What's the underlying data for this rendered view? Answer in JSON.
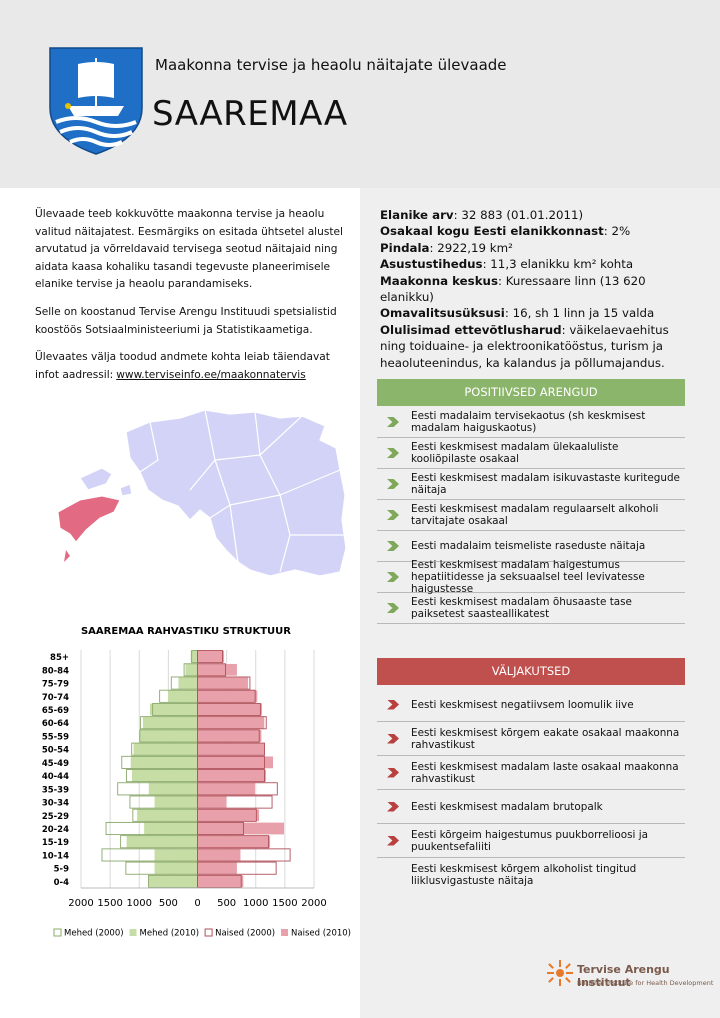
{
  "header": {
    "subtitle": "Maakonna tervise ja heaolu näitajate ülevaade",
    "title": "SAAREMAA"
  },
  "intro": {
    "paragraphs": [
      "Ülevaade teeb kokkuvõtte maakonna tervise ja heaolu valitud näitajatest. Eesmärgiks on esitada ühtsetel alustel arvutatud ja võrreldavaid tervisega seotud näitajaid ning aidata kaasa kohaliku tasandi tegevuste planeerimisele elanike tervise ja heaolu parandamiseks.",
      "Selle on koostanud Tervise Arengu Instituudi spetsialistid koostöös Sotsiaalministeeriumi ja Statistikaametiga.",
      "Ülevaates välja toodud andmete kohta leiab täiendavat infot aadressil:"
    ],
    "link": "www.terviseinfo.ee/maakonnatervis"
  },
  "facts": [
    {
      "label": "Elanike arv",
      "value": ": 32 883 (01.01.2011)"
    },
    {
      "label": "Osakaal kogu Eesti elanikkonnast",
      "value": ": 2%"
    },
    {
      "label": "Pindala",
      "value": ": 2922,19 km²"
    },
    {
      "label": "Asustustihedus",
      "value": ": 11,3 elanikku km² kohta"
    },
    {
      "label": "Maakonna keskus",
      "value": ": Kuressaare linn (13 620 elanikku)"
    },
    {
      "label": "Omavalitsusüksusi",
      "value": ": 16, sh 1 linn ja 15 valda"
    },
    {
      "label": "Olulisimad ettevõtlusharud",
      "value": ": väikelaevaehitus ning toiduaine- ja elektroonikatööstus, turism ja heaoluteenindus, ka kalandus ja põllumajandus."
    }
  ],
  "positive": {
    "heading": "POSITIIVSED ARENGUD",
    "items": [
      "Eesti madalaim tervisekaotus (sh keskmisest madalam haiguskaotus)",
      "Eesti keskmisest madalam ülekaaluliste kooliõpilaste osakaal",
      "Eesti keskmisest madalam isikuvastaste kuritegude näitaja",
      "Eesti keskmisest madalam regulaarselt alkoholi tarvitajate osakaal",
      "Eesti madalaim teismeliste raseduste näitaja",
      "Eesti keskmisest madalam haigestumus hepatiitidesse ja seksuaalsel teel levivatesse haigustesse",
      "Eesti keskmisest madalam õhusaaste tase paiksetest saasteallikatest"
    ]
  },
  "challenges": {
    "heading": "VÄLJAKUTSED",
    "items": [
      "Eesti keskmisest negatiivsem loomulik iive",
      "Eesti keskmisest kõrgem eakate osakaal maakonna rahvastikust",
      "Eesti keskmisest madalam laste osakaal maakonna rahvastikust",
      "Eesti keskmisest madalam brutopalk",
      "Eesti kõrgeim haigestumus puukborrelioosi ja puukentsefaliiti",
      "Eesti keskmisest kõrgem alkoholist tingitud liiklusvigastuste näitaja"
    ]
  },
  "footer": {
    "name": "Tervise Arengu Instituut",
    "tagline": "National Institute for Health Development"
  },
  "chart_data": {
    "type": "pyramid",
    "title": "SAAREMAA RAHVASTIKU STRUKTUUR",
    "categories": [
      "85+",
      "80-84",
      "75-79",
      "70-74",
      "65-69",
      "60-64",
      "55-59",
      "50-54",
      "45-49",
      "40-44",
      "35-39",
      "30-34",
      "25-29",
      "20-24",
      "15-19",
      "10-14",
      "5-9",
      "0-4"
    ],
    "series": [
      {
        "name": "Mehed (2000)",
        "color": "#8aa86a",
        "style": "outline",
        "side": "left",
        "values": [
          100,
          230,
          450,
          650,
          770,
          980,
          990,
          1130,
          1300,
          1220,
          1370,
          1160,
          1110,
          1570,
          1320,
          1640,
          1230,
          840
        ]
      },
      {
        "name": "Mehed (2010)",
        "color": "#c6dea6",
        "style": "filled",
        "side": "left",
        "values": [
          120,
          210,
          330,
          510,
          820,
          940,
          1010,
          1100,
          1150,
          1130,
          840,
          740,
          1040,
          920,
          1220,
          740,
          740,
          840
        ]
      },
      {
        "name": "Naised (2000)",
        "color": "#b0505a",
        "style": "outline",
        "side": "right",
        "values": [
          430,
          480,
          900,
          990,
          1080,
          1180,
          1060,
          1150,
          1150,
          1150,
          1370,
          1280,
          1010,
          790,
          1220,
          1590,
          1350,
          750
        ]
      },
      {
        "name": "Naised (2010)",
        "color": "#e8a1aa",
        "style": "filled",
        "side": "right",
        "values": [
          460,
          680,
          870,
          1030,
          1110,
          1150,
          1100,
          1160,
          1300,
          1180,
          990,
          500,
          1060,
          1490,
          1250,
          740,
          680,
          790
        ]
      }
    ],
    "xlim": [
      -2000,
      2000
    ],
    "xticks": [
      {
        "value": -2000,
        "label": "2000"
      },
      {
        "value": -1500,
        "label": "1500"
      },
      {
        "value": -1000,
        "label": "1000"
      },
      {
        "value": -500,
        "label": "500"
      },
      0,
      500,
      1000,
      1500,
      2000
    ],
    "grid": true,
    "legend": "bottom"
  }
}
